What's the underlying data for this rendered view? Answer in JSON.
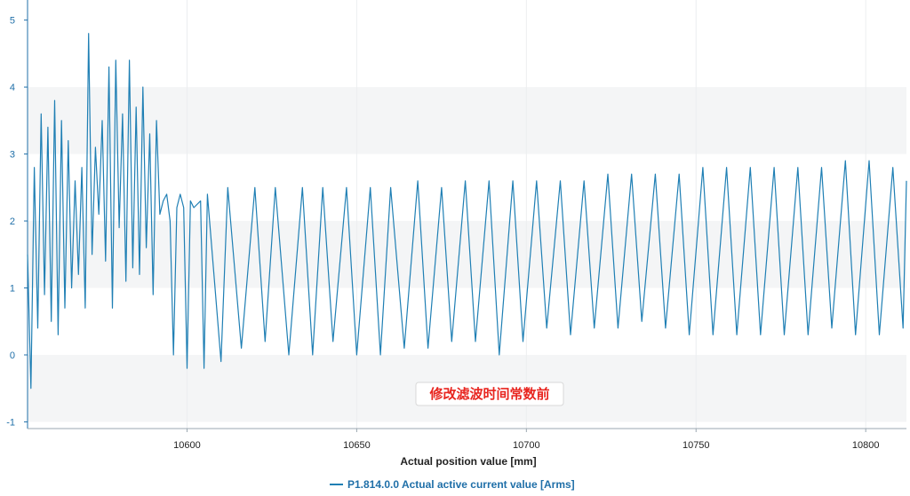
{
  "chart_data": {
    "type": "line",
    "xlabel": "Actual position value [mm]",
    "ylabel": "",
    "xlim": [
      10553,
      10812
    ],
    "ylim": [
      -1.1,
      5.3
    ],
    "x_ticks": [
      10600,
      10650,
      10700,
      10750,
      10800
    ],
    "y_ticks": [
      -1,
      0,
      1,
      2,
      3,
      4,
      5
    ],
    "grid": "horizontal alternating bands",
    "legend_position": "bottom",
    "annotation": "修改滤波时间常数前",
    "series": [
      {
        "name": "P1.814.0.0 Actual active current value [Arms]",
        "color": "#1f7fb4",
        "description_points": [
          [
            10553,
            1.5
          ],
          [
            10554,
            -0.5
          ],
          [
            10555,
            2.8
          ],
          [
            10556,
            0.4
          ],
          [
            10557,
            3.6
          ],
          [
            10558,
            0.9
          ],
          [
            10559,
            3.4
          ],
          [
            10560,
            0.5
          ],
          [
            10561,
            3.8
          ],
          [
            10562,
            0.3
          ],
          [
            10563,
            3.5
          ],
          [
            10564,
            0.7
          ],
          [
            10565,
            3.2
          ],
          [
            10566,
            1.0
          ],
          [
            10567,
            2.6
          ],
          [
            10568,
            1.2
          ],
          [
            10569,
            2.8
          ],
          [
            10570,
            0.7
          ],
          [
            10571,
            4.8
          ],
          [
            10572,
            1.5
          ],
          [
            10573,
            3.1
          ],
          [
            10574,
            2.1
          ],
          [
            10575,
            3.5
          ],
          [
            10576,
            1.4
          ],
          [
            10577,
            4.3
          ],
          [
            10578,
            0.7
          ],
          [
            10579,
            4.4
          ],
          [
            10580,
            1.9
          ],
          [
            10581,
            3.6
          ],
          [
            10582,
            1.1
          ],
          [
            10583,
            4.4
          ],
          [
            10584,
            1.3
          ],
          [
            10585,
            3.7
          ],
          [
            10586,
            1.2
          ],
          [
            10587,
            4.0
          ],
          [
            10588,
            1.6
          ],
          [
            10589,
            3.3
          ],
          [
            10590,
            0.9
          ],
          [
            10591,
            3.5
          ],
          [
            10592,
            2.1
          ],
          [
            10593,
            2.3
          ],
          [
            10594,
            2.4
          ],
          [
            10595,
            2.0
          ],
          [
            10596,
            0.0
          ],
          [
            10597,
            2.2
          ],
          [
            10598,
            2.4
          ],
          [
            10599,
            2.2
          ],
          [
            10600,
            -0.2
          ],
          [
            10601,
            2.3
          ],
          [
            10602,
            2.2
          ],
          [
            10604,
            2.3
          ],
          [
            10605,
            -0.2
          ],
          [
            10606,
            2.4
          ],
          [
            10610,
            -0.1
          ],
          [
            10612,
            2.5
          ],
          [
            10616,
            0.1
          ],
          [
            10620,
            2.5
          ],
          [
            10623,
            0.2
          ],
          [
            10626,
            2.5
          ],
          [
            10630,
            0.0
          ],
          [
            10634,
            2.5
          ],
          [
            10637,
            0.0
          ],
          [
            10640,
            2.5
          ],
          [
            10643,
            0.2
          ],
          [
            10647,
            2.5
          ],
          [
            10650,
            0.0
          ],
          [
            10654,
            2.5
          ],
          [
            10657,
            0.0
          ],
          [
            10660,
            2.5
          ],
          [
            10664,
            0.1
          ],
          [
            10668,
            2.6
          ],
          [
            10671,
            0.1
          ],
          [
            10675,
            2.5
          ],
          [
            10678,
            0.2
          ],
          [
            10682,
            2.6
          ],
          [
            10685,
            0.2
          ],
          [
            10689,
            2.6
          ],
          [
            10692,
            0.0
          ],
          [
            10696,
            2.6
          ],
          [
            10699,
            0.2
          ],
          [
            10703,
            2.6
          ],
          [
            10706,
            0.4
          ],
          [
            10710,
            2.6
          ],
          [
            10713,
            0.3
          ],
          [
            10717,
            2.6
          ],
          [
            10720,
            0.4
          ],
          [
            10724,
            2.7
          ],
          [
            10727,
            0.4
          ],
          [
            10731,
            2.7
          ],
          [
            10734,
            0.5
          ],
          [
            10738,
            2.7
          ],
          [
            10741,
            0.4
          ],
          [
            10745,
            2.7
          ],
          [
            10748,
            0.3
          ],
          [
            10752,
            2.8
          ],
          [
            10755,
            0.3
          ],
          [
            10759,
            2.8
          ],
          [
            10762,
            0.3
          ],
          [
            10766,
            2.8
          ],
          [
            10769,
            0.3
          ],
          [
            10773,
            2.8
          ],
          [
            10776,
            0.3
          ],
          [
            10780,
            2.8
          ],
          [
            10783,
            0.3
          ],
          [
            10787,
            2.8
          ],
          [
            10790,
            0.4
          ],
          [
            10794,
            2.9
          ],
          [
            10797,
            0.3
          ],
          [
            10801,
            2.9
          ],
          [
            10804,
            0.3
          ],
          [
            10808,
            2.8
          ],
          [
            10811,
            0.4
          ],
          [
            10812,
            2.6
          ]
        ]
      }
    ]
  }
}
